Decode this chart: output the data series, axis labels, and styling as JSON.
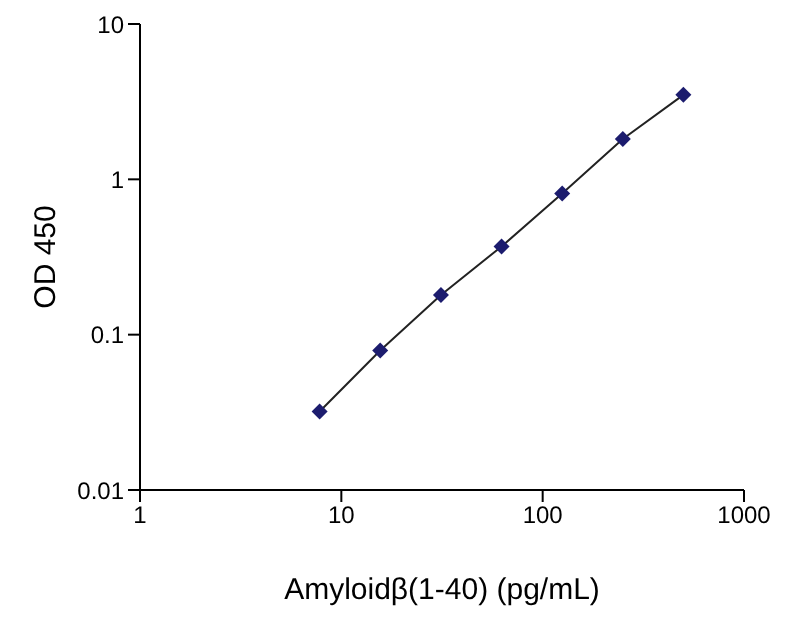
{
  "chart_data": {
    "type": "line",
    "xlabel": "Amyloidβ(1-40)  (pg/mL)",
    "ylabel": "OD 450",
    "log": "xy",
    "xlim": [
      1,
      1000
    ],
    "xticks": [
      1,
      10,
      100,
      1000
    ],
    "ylim": [
      0.01,
      10
    ],
    "yticks": [
      0.01,
      0.1,
      1,
      10
    ],
    "x": [
      7.8,
      15.6,
      31.25,
      62.5,
      125,
      250,
      500
    ],
    "series": [
      {
        "color": "#1c1c6e",
        "values": [
          0.032,
          0.079,
          0.18,
          0.37,
          0.81,
          1.82,
          3.5
        ]
      }
    ],
    "marker": "diamond",
    "line_style": "solid",
    "grid": false,
    "legend": false
  }
}
